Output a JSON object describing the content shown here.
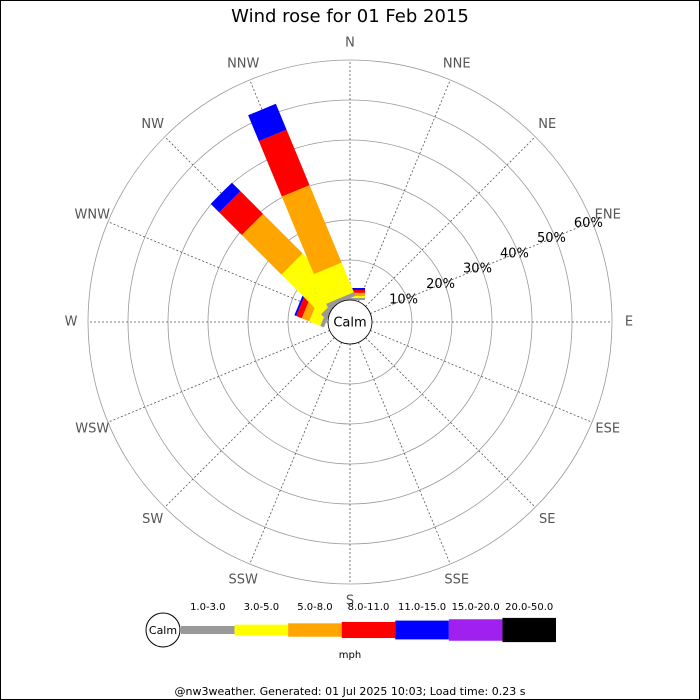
{
  "chart_data": {
    "type": "wind-rose",
    "title": "Wind rose for 01 Feb 2015",
    "directions": [
      "N",
      "NNE",
      "NE",
      "ENE",
      "E",
      "ESE",
      "SE",
      "SSE",
      "S",
      "SSW",
      "SW",
      "WSW",
      "W",
      "WNW",
      "NW",
      "NNW"
    ],
    "calm_label": "Calm",
    "rlim": [
      0,
      60
    ],
    "rticks": [
      {
        "value": 10,
        "label": "10%"
      },
      {
        "value": 20,
        "label": "20%"
      },
      {
        "value": 30,
        "label": "30%"
      },
      {
        "value": 40,
        "label": "40%"
      },
      {
        "value": 50,
        "label": "50%"
      },
      {
        "value": 60,
        "label": "60%"
      }
    ],
    "series": [
      {
        "name": "1.0-3.0",
        "color": "#999999",
        "values": [
          0.5,
          0,
          0,
          0,
          0,
          0,
          0,
          0,
          0,
          0,
          0,
          0,
          0,
          1,
          1,
          1
        ]
      },
      {
        "name": "3.0-5.0",
        "color": "#ffff00",
        "values": [
          0.5,
          0,
          0,
          0,
          0,
          0,
          0,
          0,
          0,
          0,
          0,
          0,
          0,
          3,
          14,
          8
        ]
      },
      {
        "name": "5.0-8.0",
        "color": "#ffa500",
        "values": [
          0.8,
          0,
          0,
          0,
          0,
          0,
          0,
          0,
          0,
          0,
          0,
          0,
          0,
          2,
          14,
          21
        ]
      },
      {
        "name": "8.0-11.0",
        "color": "#ff0000",
        "values": [
          0.7,
          0,
          0,
          0,
          0,
          0,
          0,
          0,
          0,
          0,
          0,
          0,
          0,
          1.5,
          8,
          15
        ]
      },
      {
        "name": "11.0-15.0",
        "color": "#0000ff",
        "values": [
          0.5,
          0,
          0,
          0,
          0,
          0,
          0,
          0,
          0,
          0,
          0,
          0,
          0,
          0.5,
          3,
          7
        ]
      },
      {
        "name": "15.0-20.0",
        "color": "#a020f0",
        "values": [
          0,
          0,
          0,
          0,
          0,
          0,
          0,
          0,
          0,
          0,
          0,
          0,
          0,
          0,
          0,
          0
        ]
      },
      {
        "name": "20.0-50.0",
        "color": "#000000",
        "values": [
          0,
          0,
          0,
          0,
          0,
          0,
          0,
          0,
          0,
          0,
          0,
          0,
          0,
          0,
          0,
          0
        ]
      }
    ],
    "unit": "mph",
    "footer": "@nw3weather. Generated: 01 Jul 2025 10:03; Load time: 0.23 s"
  }
}
